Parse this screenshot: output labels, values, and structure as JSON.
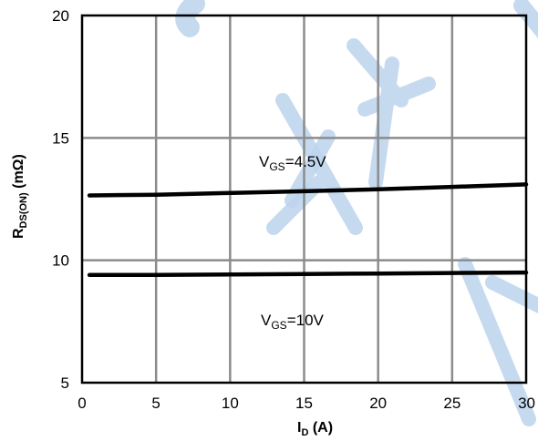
{
  "chart_data": {
    "type": "line",
    "xlabel": {
      "main": "I",
      "sub": "D",
      "rest": " (A)"
    },
    "ylabel": {
      "main": "R",
      "sub": "DS(ON)",
      "rest": " (mΩ)"
    },
    "xlim": [
      0,
      30
    ],
    "ylim": [
      5,
      20
    ],
    "xticks": [
      0,
      5,
      10,
      15,
      20,
      25,
      30
    ],
    "yticks": [
      5,
      10,
      15,
      20
    ],
    "x_tick_labels": [
      "0",
      "5",
      "10",
      "15",
      "20",
      "25",
      "30"
    ],
    "y_tick_labels": [
      "5",
      "10",
      "15",
      "20"
    ],
    "grid": true,
    "series": [
      {
        "label": {
          "main": "V",
          "sub": "GS",
          "rest": "=4.5V"
        },
        "x": [
          0.5,
          5,
          10,
          15,
          20,
          25,
          30
        ],
        "y": [
          12.65,
          12.68,
          12.75,
          12.82,
          12.9,
          13.0,
          13.1
        ]
      },
      {
        "label": {
          "main": "V",
          "sub": "GS",
          "rest": "=10V"
        },
        "x": [
          0.5,
          5,
          10,
          15,
          20,
          25,
          30
        ],
        "y": [
          9.4,
          9.4,
          9.42,
          9.44,
          9.46,
          9.48,
          9.5
        ]
      }
    ]
  }
}
